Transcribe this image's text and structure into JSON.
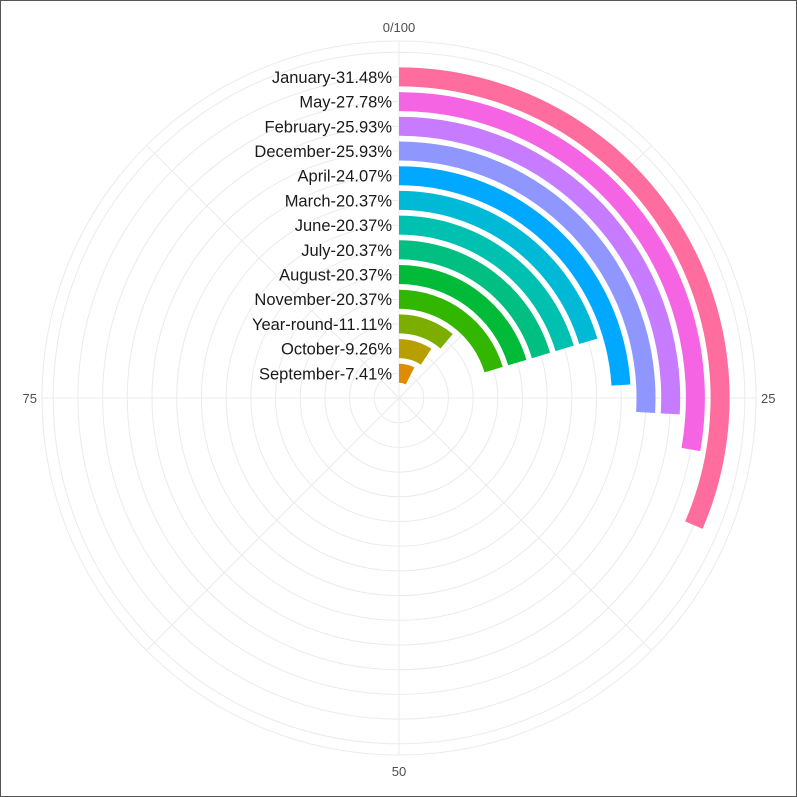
{
  "chart_data": {
    "type": "bar",
    "subtype": "radial-bar (polar coordinates)",
    "categories": [
      "January-31.48%",
      "May-27.78%",
      "February-25.93%",
      "December-25.93%",
      "April-24.07%",
      "March-20.37%",
      "June-20.37%",
      "July-20.37%",
      "August-20.37%",
      "November-20.37%",
      "Year-round-11.11%",
      "October-9.26%",
      "September-7.41%"
    ],
    "values": [
      31.48,
      27.78,
      25.93,
      25.93,
      24.07,
      20.37,
      20.37,
      20.37,
      20.37,
      20.37,
      11.11,
      9.26,
      7.41
    ],
    "colors": [
      "#FF6C9E",
      "#F564E3",
      "#C77CFF",
      "#8F97FF",
      "#00A9FF",
      "#00B9D7",
      "#00C0AF",
      "#00BF81",
      "#00BA38",
      "#33B600",
      "#7CAE00",
      "#B79F00",
      "#DE8C00"
    ],
    "theta_range": [
      0,
      100
    ],
    "angle_ticks": [
      {
        "value": 0,
        "label": "0/100"
      },
      {
        "value": 25,
        "label": "25"
      },
      {
        "value": 50,
        "label": "50"
      },
      {
        "value": 75,
        "label": "75"
      }
    ],
    "grid": true,
    "legend": "none"
  }
}
